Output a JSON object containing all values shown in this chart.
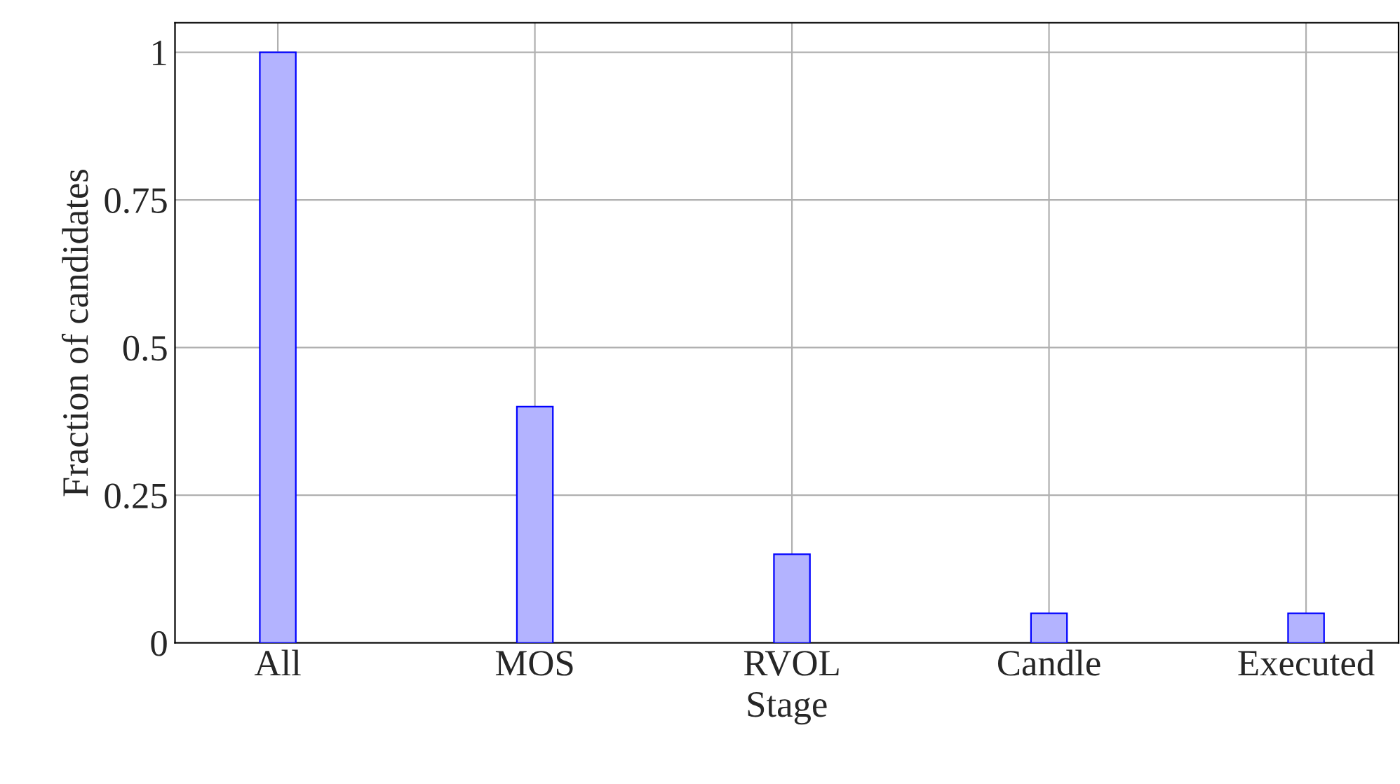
{
  "chart_data": {
    "type": "bar",
    "xlabel": "Stage",
    "ylabel": "Fraction of candidates",
    "categories": [
      "All",
      "MOS",
      "RVOL",
      "Candle",
      "Executed"
    ],
    "values": [
      1,
      0.4,
      0.15,
      0.05,
      0.05
    ],
    "color": "#b3b3ff",
    "ylim": [
      0,
      1.05
    ],
    "yticks": [
      0,
      0.25,
      0.5,
      0.75,
      1
    ],
    "grid": true,
    "legend": false
  }
}
